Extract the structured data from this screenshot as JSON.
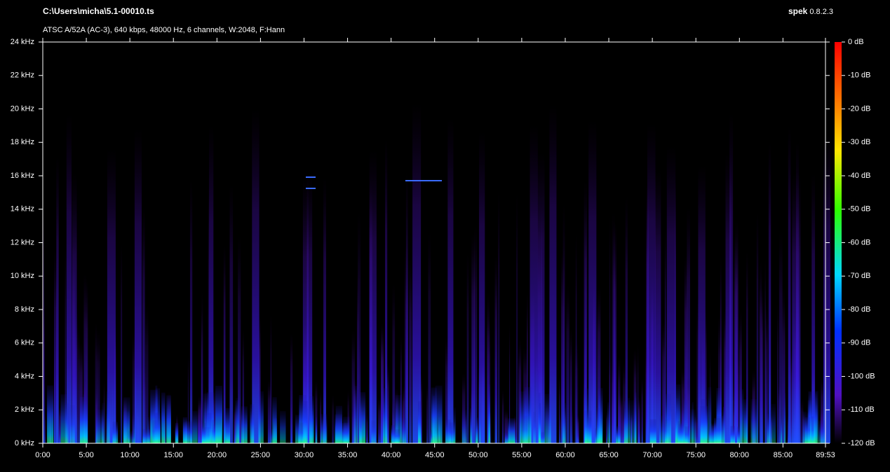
{
  "window": {
    "file": "C:\\Users\\micha\\5.1-00010.ts",
    "info": "ATSC A/52A (AC-3), 640 kbps, 48000 Hz, 6 channels, W:2048, F:Hann",
    "app": "spek",
    "version": "0.8.2.3"
  },
  "frequency_axis": {
    "labels": [
      "0 kHz",
      "2 kHz",
      "4 kHz",
      "6 kHz",
      "8 kHz",
      "10 kHz",
      "12 kHz",
      "14 kHz",
      "16 kHz",
      "18 kHz",
      "20 kHz",
      "22 kHz",
      "24 kHz"
    ]
  },
  "time_axis": {
    "labels": [
      "0:00",
      "5:00",
      "10:00",
      "15:00",
      "20:00",
      "25:00",
      "30:00",
      "35:00",
      "40:00",
      "45:00",
      "50:00",
      "55:00",
      "60:00",
      "65:00",
      "70:00",
      "75:00",
      "80:00",
      "85:00",
      "89:53"
    ]
  },
  "level_scale": {
    "labels": [
      "0 dB",
      "-10 dB",
      "-20 dB",
      "-30 dB",
      "-40 dB",
      "-50 dB",
      "-60 dB",
      "-70 dB",
      "-80 dB",
      "-90 dB",
      "-100 dB",
      "-110 dB",
      "-120 dB"
    ]
  }
}
